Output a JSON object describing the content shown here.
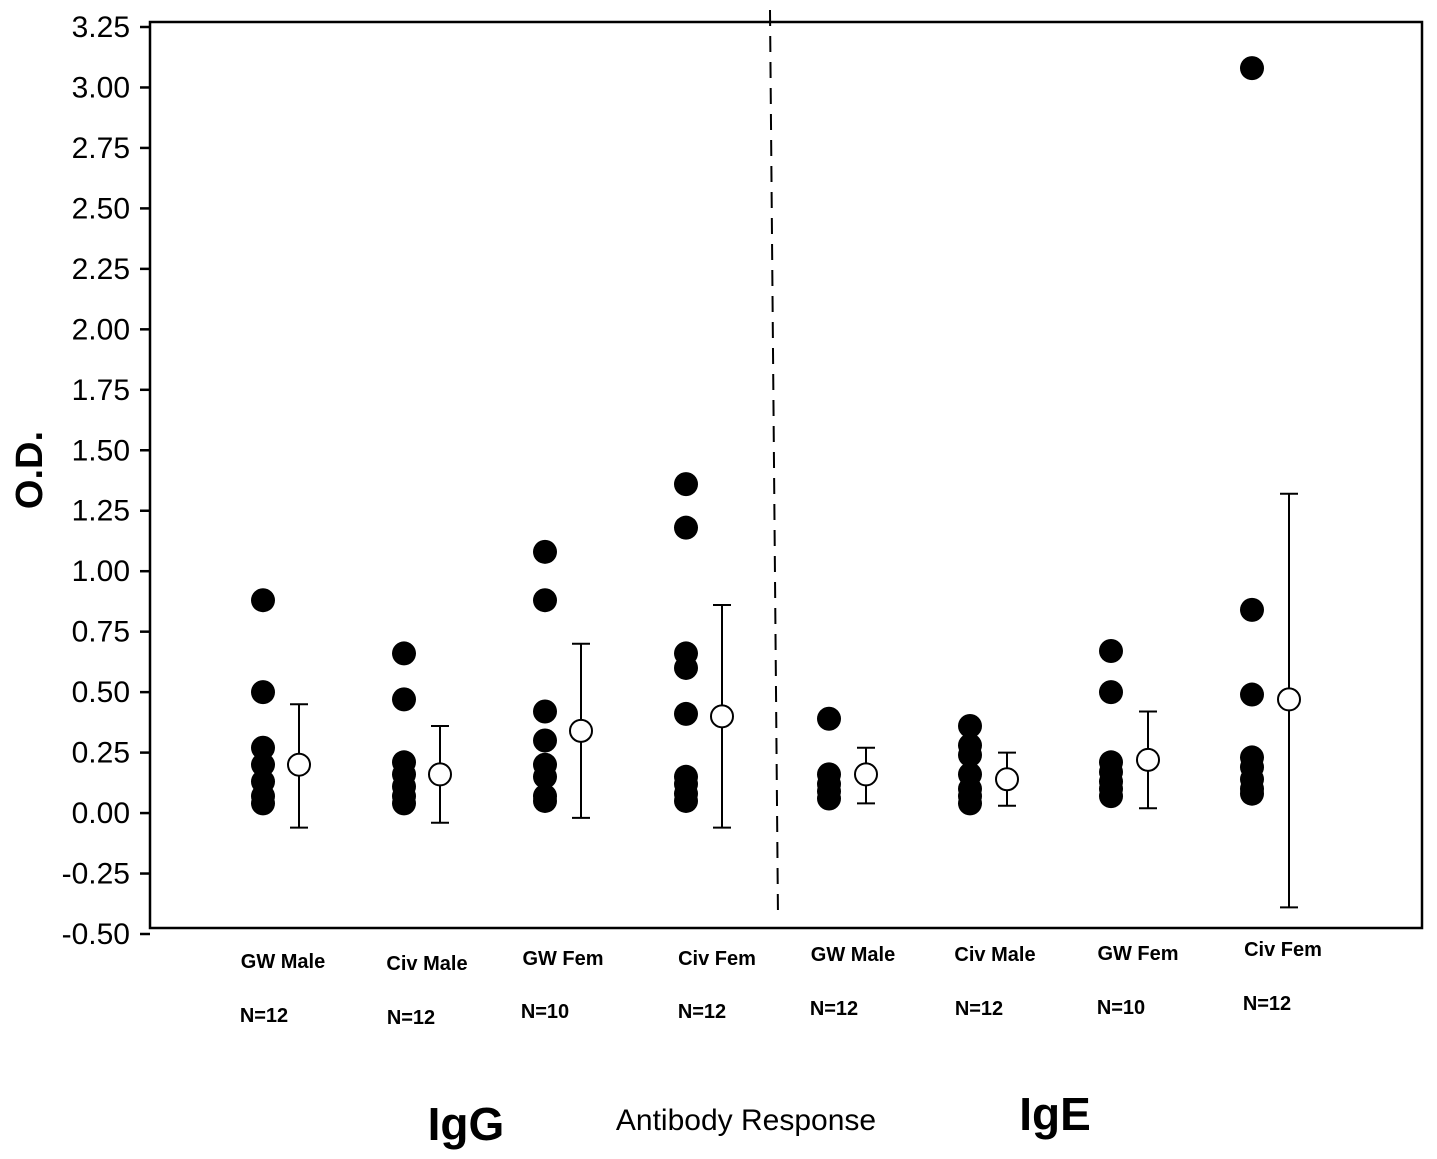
{
  "chart_data": {
    "type": "scatter",
    "ylabel": "O.D.",
    "xlabel": "Antibody Response",
    "ylim": [
      -0.5,
      3.25
    ],
    "yticks": [
      "3.25",
      "3.00",
      "2.75",
      "2.50",
      "2.25",
      "2.00",
      "1.75",
      "1.50",
      "1.25",
      "1.00",
      "0.75",
      "0.50",
      "0.25",
      "0.00",
      "-0.25",
      "-0.50"
    ],
    "grid": false,
    "groups": [
      {
        "label": "IgG"
      },
      {
        "label": "IgE"
      }
    ],
    "categories": [
      {
        "label": "GW Male",
        "n": "N=12",
        "group": "IgG",
        "points": [
          0.88,
          0.5,
          0.27,
          0.2,
          0.13,
          0.07,
          0.04
        ],
        "mean": 0.2,
        "err_low": -0.06,
        "err_high": 0.45
      },
      {
        "label": "Civ Male",
        "n": "N=12",
        "group": "IgG",
        "points": [
          0.66,
          0.47,
          0.21,
          0.16,
          0.11,
          0.07,
          0.04
        ],
        "mean": 0.16,
        "err_low": -0.04,
        "err_high": 0.36
      },
      {
        "label": "GW Fem",
        "n": "N=10",
        "group": "IgG",
        "points": [
          1.08,
          0.88,
          0.42,
          0.3,
          0.2,
          0.15,
          0.07,
          0.05
        ],
        "mean": 0.34,
        "err_low": -0.02,
        "err_high": 0.7
      },
      {
        "label": "Civ Fem",
        "n": "N=12",
        "group": "IgG",
        "points": [
          1.36,
          1.18,
          0.66,
          0.6,
          0.41,
          0.15,
          0.12,
          0.08,
          0.05
        ],
        "mean": 0.4,
        "err_low": -0.06,
        "err_high": 0.86
      },
      {
        "label": "GW Male",
        "n": "N=12",
        "group": "IgE",
        "points": [
          0.39,
          0.16,
          0.12,
          0.09,
          0.06
        ],
        "mean": 0.16,
        "err_low": 0.04,
        "err_high": 0.27
      },
      {
        "label": "Civ Male",
        "n": "N=12",
        "group": "IgE",
        "points": [
          0.36,
          0.28,
          0.24,
          0.16,
          0.1,
          0.07,
          0.04
        ],
        "mean": 0.14,
        "err_low": 0.03,
        "err_high": 0.25
      },
      {
        "label": "GW Fem",
        "n": "N=10",
        "group": "IgE",
        "points": [
          0.67,
          0.5,
          0.21,
          0.17,
          0.13,
          0.1,
          0.07
        ],
        "mean": 0.22,
        "err_low": 0.02,
        "err_high": 0.42
      },
      {
        "label": "Civ Fem",
        "n": "N=12",
        "group": "IgE",
        "points": [
          3.08,
          0.84,
          0.49,
          0.23,
          0.19,
          0.14,
          0.1,
          0.08
        ],
        "mean": 0.47,
        "err_low": -0.39,
        "err_high": 1.32
      }
    ]
  }
}
